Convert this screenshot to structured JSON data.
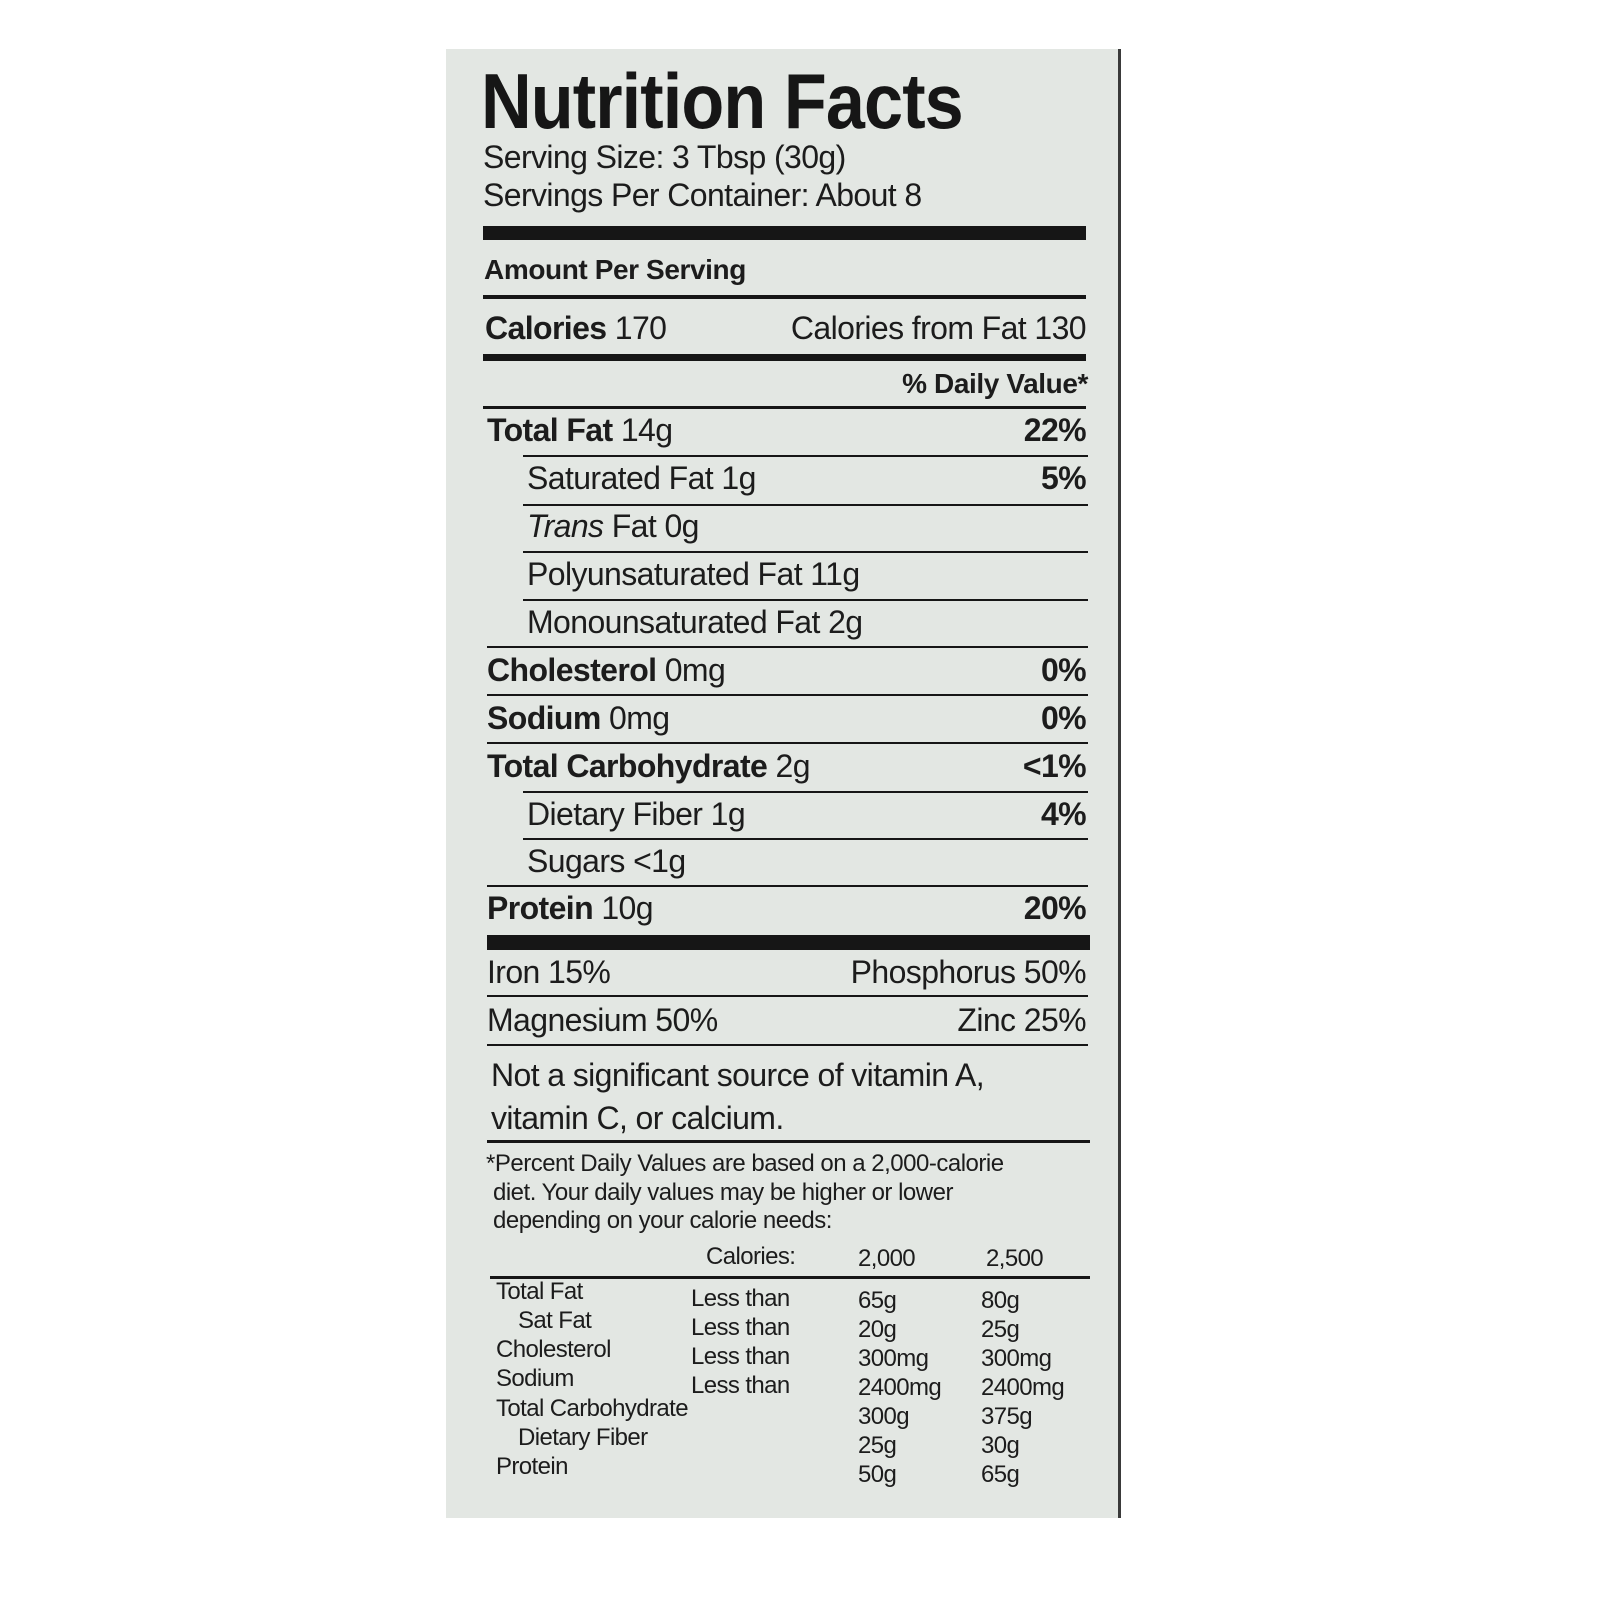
{
  "title": "Nutrition Facts",
  "serving_size": "Serving Size: 3 Tbsp (30g)",
  "servings_per_container": "Servings Per Container:  About 8",
  "amount_per_serving": "Amount Per Serving",
  "calories": {
    "label": "Calories",
    "value": "170",
    "from_fat_label": "Calories from Fat",
    "from_fat_value": "130"
  },
  "dv_header": "% Daily Value*",
  "nutrients": [
    {
      "name": "Total Fat",
      "amount": "14g",
      "dv": "22%"
    },
    {
      "name": "Saturated Fat",
      "amount": "1g",
      "dv": "5%"
    },
    {
      "name_italic": "Trans",
      "name": "Fat",
      "amount": "0g",
      "dv": ""
    },
    {
      "name": "Polyunsaturated Fat",
      "amount": "11g",
      "dv": ""
    },
    {
      "name": "Monounsaturated Fat",
      "amount": "2g",
      "dv": ""
    },
    {
      "name": "Cholesterol",
      "amount": "0mg",
      "dv": "0%"
    },
    {
      "name": "Sodium",
      "amount": "0mg",
      "dv": "0%"
    },
    {
      "name": "Total Carbohydrate",
      "amount": "2g",
      "dv": "<1%"
    },
    {
      "name": "Dietary Fiber",
      "amount": "1g",
      "dv": "4%"
    },
    {
      "name": "Sugars",
      "amount": "<1g",
      "dv": ""
    },
    {
      "name": "Protein",
      "amount": "10g",
      "dv": "20%"
    }
  ],
  "minerals": [
    {
      "left": "Iron 15%",
      "right": "Phosphorus 50%"
    },
    {
      "left": "Magnesium 50%",
      "right": "Zinc 25%"
    }
  ],
  "note": [
    "Not a significant source of vitamin A,",
    "vitamin C, or calcium."
  ],
  "footnote": [
    "*Percent Daily Values are based on a 2,000-calorie",
    "diet. Your daily values may be higher or lower",
    "depending on your calorie needs:"
  ],
  "dv_table": {
    "header": {
      "label": "Calories:",
      "col1": "2,000",
      "col2": "2,500"
    },
    "rows": [
      {
        "name": "Total Fat",
        "qualifier": "Less than",
        "col1": "65g",
        "col2": "80g"
      },
      {
        "name": "Sat Fat",
        "qualifier": "Less than",
        "col1": "20g",
        "col2": "25g"
      },
      {
        "name": "Cholesterol",
        "qualifier": "Less than",
        "col1": "300mg",
        "col2": "300mg"
      },
      {
        "name": "Sodium",
        "qualifier": "Less than",
        "col1": "2400mg",
        "col2": "2400mg"
      },
      {
        "name": "Total Carbohydrate",
        "qualifier": "",
        "col1": "300g",
        "col2": "375g"
      },
      {
        "name": "Dietary Fiber",
        "qualifier": "",
        "col1": "25g",
        "col2": "30g"
      },
      {
        "name": "Protein",
        "qualifier": "",
        "col1": "50g",
        "col2": "65g"
      }
    ]
  },
  "colors": {
    "label_background": "#e3e7e3",
    "ink": "#1c1c1c"
  }
}
